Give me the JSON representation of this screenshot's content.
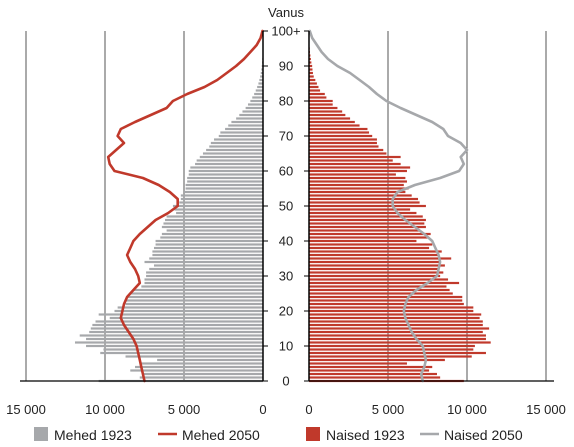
{
  "chart_data": {
    "type": "population-pyramid",
    "center_axis_title": "Vanus",
    "age_ticks": [
      "0",
      "10",
      "20",
      "30",
      "40",
      "50",
      "60",
      "70",
      "80",
      "90",
      "100+"
    ],
    "left_axis": {
      "ticks": [
        "15 000",
        "10 000",
        "5 000",
        "0"
      ],
      "tick_values": [
        15000,
        10000,
        5000,
        0
      ],
      "range": [
        0,
        15000
      ]
    },
    "right_axis": {
      "ticks": [
        "0",
        "5 000",
        "10 000",
        "15 000"
      ],
      "tick_values": [
        0,
        5000,
        10000,
        15000
      ],
      "range": [
        0,
        15000
      ]
    },
    "legend": {
      "males_1923": "Mehed 1923",
      "males_2050": "Mehed 2050",
      "females_1923": "Naised 1923",
      "females_2050": "Naised 2050"
    },
    "colors": {
      "males_1923": "#a6a8ab",
      "males_2050": "#c0392b",
      "females_1923": "#c0392b",
      "females_2050": "#a6a8ab",
      "grid": "#555555"
    },
    "series": {
      "males_1923": {
        "ages": [
          0,
          1,
          2,
          3,
          4,
          5,
          6,
          7,
          8,
          9,
          10,
          11,
          12,
          13,
          14,
          15,
          16,
          17,
          18,
          19,
          20,
          21,
          22,
          23,
          24,
          25,
          26,
          27,
          28,
          29,
          30,
          31,
          32,
          33,
          34,
          35,
          36,
          37,
          38,
          39,
          40,
          41,
          42,
          43,
          44,
          45,
          46,
          47,
          48,
          49,
          50,
          51,
          52,
          53,
          54,
          55,
          56,
          57,
          58,
          59,
          60,
          61,
          62,
          63,
          64,
          65,
          66,
          67,
          68,
          69,
          70,
          71,
          72,
          73,
          74,
          75,
          76,
          77,
          78,
          79,
          80,
          81,
          82,
          83,
          84,
          85,
          86,
          87,
          88,
          89,
          90,
          91,
          92,
          93,
          94,
          95,
          96,
          97,
          98,
          99,
          100
        ],
        "values": [
          10400,
          7800,
          7600,
          8400,
          8100,
          7700,
          6700,
          8700,
          10300,
          10100,
          11200,
          11900,
          11200,
          11600,
          11000,
          10900,
          10800,
          10600,
          9700,
          10400,
          9400,
          9200,
          8700,
          8700,
          8600,
          8400,
          8200,
          7700,
          7500,
          7500,
          7400,
          7400,
          7200,
          6900,
          7500,
          7200,
          7000,
          7000,
          6900,
          6800,
          6800,
          6500,
          6400,
          6100,
          6400,
          6300,
          6200,
          6100,
          5500,
          5600,
          5700,
          5300,
          5200,
          5200,
          5000,
          4900,
          4900,
          4800,
          4800,
          4700,
          4700,
          4600,
          4300,
          4200,
          4000,
          3800,
          3600,
          3400,
          3300,
          3100,
          2800,
          2700,
          2400,
          2200,
          2000,
          1700,
          1500,
          1300,
          1100,
          950,
          800,
          680,
          560,
          460,
          370,
          290,
          230,
          180,
          140,
          105,
          80,
          60,
          45,
          32,
          22,
          16,
          11,
          7,
          5,
          3,
          2
        ]
      },
      "males_2050": {
        "ages": [
          0,
          2,
          4,
          6,
          8,
          10,
          12,
          14,
          16,
          18,
          20,
          22,
          24,
          26,
          28,
          30,
          32,
          34,
          36,
          38,
          40,
          42,
          44,
          46,
          48,
          50,
          52,
          54,
          56,
          58,
          60,
          62,
          64,
          66,
          68,
          70,
          72,
          74,
          76,
          78,
          80,
          82,
          84,
          86,
          88,
          90,
          92,
          94,
          96,
          98,
          100
        ],
        "values": [
          7500,
          7600,
          7700,
          7800,
          7900,
          8000,
          8200,
          8500,
          8800,
          9000,
          8900,
          8800,
          8600,
          8200,
          7800,
          7900,
          8100,
          8400,
          8600,
          8400,
          8200,
          7800,
          7300,
          6800,
          6000,
          5400,
          5400,
          5900,
          6600,
          7600,
          9400,
          9700,
          9800,
          9300,
          8800,
          9200,
          9000,
          8100,
          7100,
          6100,
          5700,
          4800,
          3700,
          2900,
          2300,
          1700,
          1200,
          800,
          400,
          150,
          30
        ]
      },
      "females_1923": {
        "ages": [
          0,
          1,
          2,
          3,
          4,
          5,
          6,
          7,
          8,
          9,
          10,
          11,
          12,
          13,
          14,
          15,
          16,
          17,
          18,
          19,
          20,
          21,
          22,
          23,
          24,
          25,
          26,
          27,
          28,
          29,
          30,
          31,
          32,
          33,
          34,
          35,
          36,
          37,
          38,
          39,
          40,
          41,
          42,
          43,
          44,
          45,
          46,
          47,
          48,
          49,
          50,
          51,
          52,
          53,
          54,
          55,
          56,
          57,
          58,
          59,
          60,
          61,
          62,
          63,
          64,
          65,
          66,
          67,
          68,
          69,
          70,
          71,
          72,
          73,
          74,
          75,
          76,
          77,
          78,
          79,
          80,
          81,
          82,
          83,
          84,
          85,
          86,
          87,
          88,
          89,
          90,
          91,
          92,
          93,
          94,
          95,
          96,
          97,
          98,
          99,
          100
        ],
        "values": [
          9800,
          8300,
          8100,
          7600,
          7800,
          6200,
          8600,
          10300,
          11200,
          10400,
          10500,
          11500,
          11200,
          11200,
          11000,
          11400,
          11000,
          11000,
          10800,
          10900,
          10400,
          10400,
          9800,
          9700,
          9700,
          9100,
          8900,
          8700,
          9500,
          8800,
          8300,
          8500,
          8200,
          8600,
          8300,
          9000,
          8200,
          8400,
          7600,
          7800,
          6800,
          7500,
          7700,
          7000,
          7400,
          7300,
          7400,
          7200,
          6800,
          6400,
          7400,
          7000,
          6900,
          6500,
          6100,
          6300,
          6000,
          6200,
          6100,
          5500,
          6200,
          6400,
          5800,
          5300,
          5800,
          4900,
          4700,
          4400,
          4300,
          4300,
          4000,
          3800,
          3700,
          3200,
          2900,
          2600,
          2300,
          2100,
          1800,
          1500,
          1500,
          1100,
          1000,
          700,
          600,
          500,
          400,
          300,
          250,
          220,
          200,
          150,
          120,
          90,
          60,
          45,
          30,
          20,
          12,
          8,
          5
        ]
      },
      "females_2050": {
        "ages": [
          0,
          2,
          4,
          6,
          8,
          10,
          12,
          14,
          16,
          18,
          20,
          22,
          24,
          26,
          28,
          30,
          32,
          34,
          36,
          38,
          40,
          42,
          44,
          46,
          48,
          50,
          52,
          54,
          56,
          58,
          60,
          62,
          64,
          66,
          68,
          70,
          72,
          74,
          76,
          78,
          80,
          82,
          84,
          86,
          88,
          90,
          92,
          94,
          96,
          98,
          100
        ],
        "values": [
          7200,
          7100,
          7300,
          7400,
          7300,
          7200,
          6800,
          6500,
          6300,
          6100,
          6000,
          6100,
          6300,
          6800,
          7500,
          8100,
          8200,
          8300,
          8200,
          8000,
          7800,
          7300,
          6700,
          6100,
          5600,
          5300,
          5300,
          5600,
          6700,
          8300,
          9500,
          9800,
          9600,
          10000,
          9600,
          8800,
          8500,
          7800,
          6800,
          5800,
          4900,
          4300,
          3800,
          3200,
          2600,
          1800,
          1200,
          800,
          500,
          200,
          50
        ]
      }
    }
  }
}
